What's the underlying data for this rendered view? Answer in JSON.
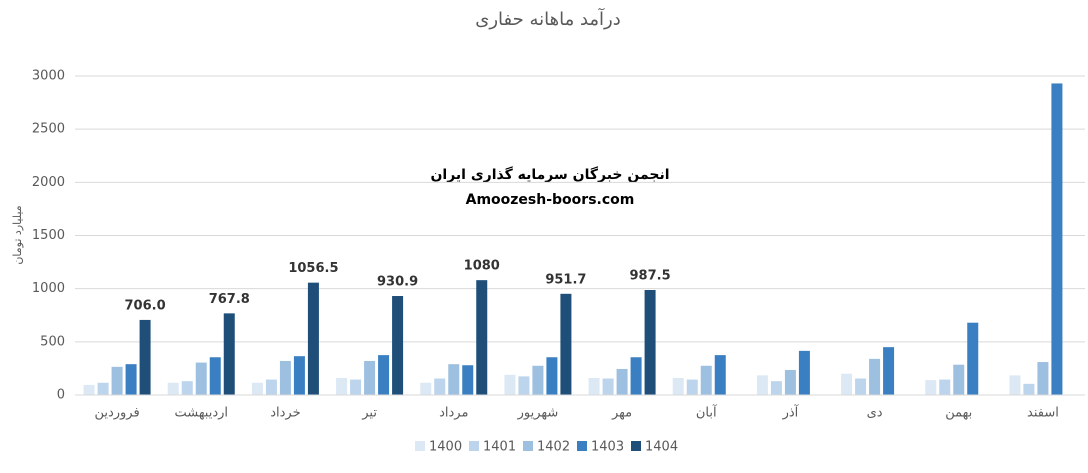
{
  "chart_data": {
    "type": "bar",
    "title": "درآمد ماهانه حفاری",
    "y_label": "میلیارد تومان",
    "watermark": [
      "انجمن خبرگان سرمایه گذاری ایران",
      "Amoozesh-boors.com"
    ],
    "categories": [
      "فروردین",
      "اردیبهشت",
      "خرداد",
      "تیر",
      "مرداد",
      "شهریور",
      "مهر",
      "آبان",
      "آذر",
      "دی",
      "بهمن",
      "اسفند"
    ],
    "series": [
      {
        "name": "1400",
        "color": "#dde8f5",
        "values": [
          95,
          115,
          115,
          160,
          115,
          190,
          160,
          160,
          185,
          200,
          140,
          185
        ]
      },
      {
        "name": "1401",
        "color": "#bcd4ec",
        "values": [
          115,
          130,
          145,
          145,
          155,
          175,
          155,
          145,
          130,
          155,
          145,
          105
        ]
      },
      {
        "name": "1402",
        "color": "#9ec0e0",
        "values": [
          265,
          305,
          320,
          320,
          290,
          275,
          245,
          275,
          235,
          340,
          285,
          310
        ]
      },
      {
        "name": "1403",
        "color": "#3a7fc1",
        "values": [
          290,
          355,
          365,
          375,
          280,
          355,
          355,
          375,
          415,
          450,
          680,
          2930
        ]
      },
      {
        "name": "1404",
        "color": "#1f4e79",
        "values": [
          706.0,
          767.8,
          1056.5,
          930.9,
          1080,
          951.7,
          987.5,
          null,
          null,
          null,
          null,
          null
        ],
        "value_labels": [
          "706.0",
          "767.8",
          "1056.5",
          "930.9",
          "1080",
          "951.7",
          "987.5",
          null,
          null,
          null,
          null,
          null
        ]
      }
    ],
    "ylim": [
      0,
      3000
    ],
    "yticks": [
      0,
      500,
      1000,
      1500,
      2000,
      2500,
      3000
    ],
    "grid": true,
    "legend": "bottom"
  }
}
